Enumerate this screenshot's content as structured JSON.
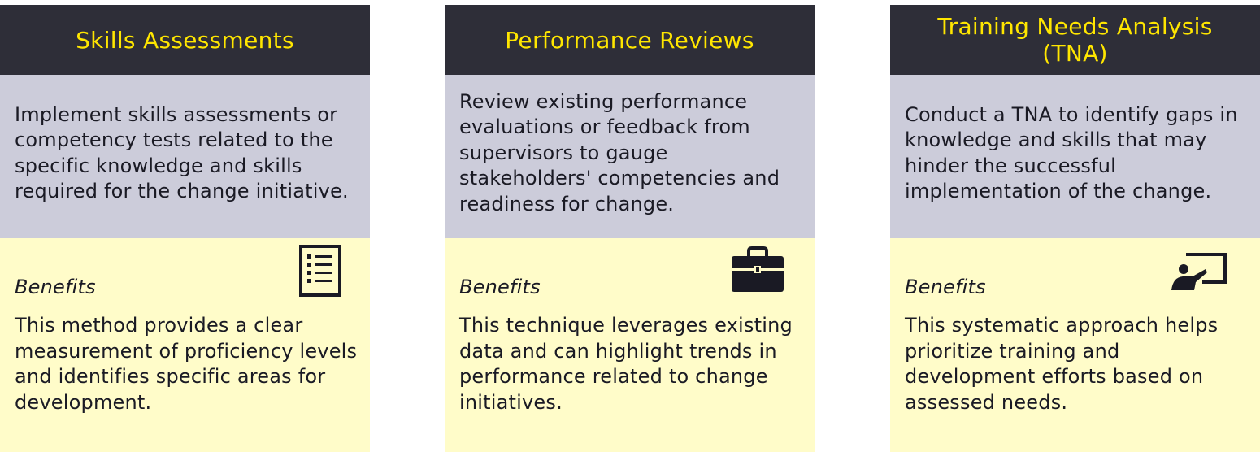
{
  "cards": [
    {
      "title": "Skills Assessments",
      "description": "Implement skills assessments or competency tests related to the specific knowledge and skills required for the change initiative.",
      "benefits_label": "Benefits",
      "benefits_text": "This method provides a clear measurement of proficiency levels and identifies specific areas for development.",
      "icon": "checklist-icon"
    },
    {
      "title": "Performance Reviews",
      "description": "Review existing performance evaluations or feedback from supervisors to gauge stakeholders' competencies and readiness for change.",
      "benefits_label": "Benefits",
      "benefits_text": "This technique leverages existing data and can highlight trends in performance related to change initiatives.",
      "icon": "briefcase-icon"
    },
    {
      "title": "Training Needs Analysis (TNA)",
      "description": "Conduct a TNA to identify gaps in knowledge and skills that may hinder the successful implementation of the change.",
      "benefits_label": "Benefits",
      "benefits_text": "This systematic approach helps prioritize training and development efforts based on assessed needs.",
      "icon": "presentation-icon"
    }
  ],
  "colors": {
    "header_bg": "#2e2e38",
    "title_text": "#ffe600",
    "description_bg": "#ccccda",
    "benefits_bg": "#fffcc9",
    "body_text": "#1a1a24"
  }
}
